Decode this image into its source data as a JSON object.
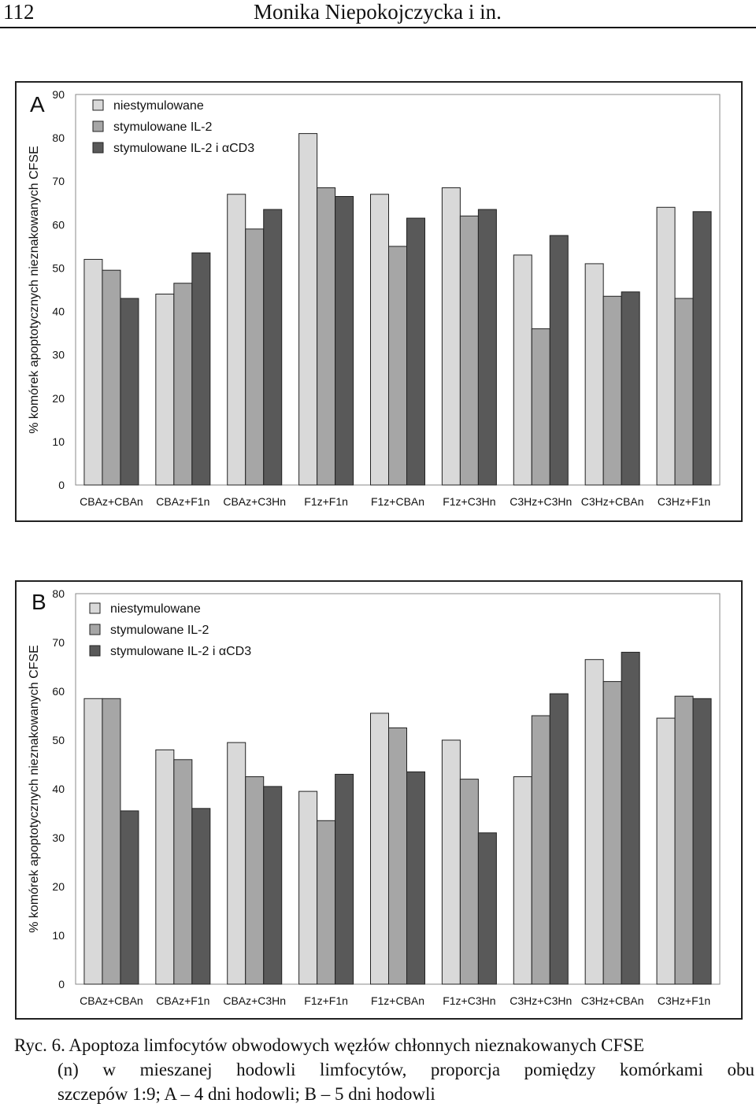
{
  "header": {
    "page_number": "112",
    "authors": "Monika Niepokojczycka i in."
  },
  "colors": {
    "niestymulowane": "#d9d9d9",
    "stymulowane_il2": "#a6a6a6",
    "stymulowane_il2_acd3": "#595959",
    "border": "#222222"
  },
  "chart_data": [
    {
      "type": "bar",
      "panel_letter": "A",
      "ylabel": "% komórek apoptotycznych nieznakowanych CFSE",
      "ylim": [
        0,
        90
      ],
      "yticks": [
        "0",
        "10",
        "20",
        "30",
        "40",
        "50",
        "60",
        "70",
        "80",
        "90"
      ],
      "legend_position": "top-left",
      "categories": [
        "CBAz+CBAn",
        "CBAz+F1n",
        "CBAz+C3Hn",
        "F1z+F1n",
        "F1z+CBAn",
        "F1z+C3Hn",
        "C3Hz+C3Hn",
        "C3Hz+CBAn",
        "C3Hz+F1n"
      ],
      "series": [
        {
          "name": "niestymulowane",
          "values": [
            52,
            44,
            67,
            81,
            67,
            68.5,
            53,
            51,
            64
          ]
        },
        {
          "name": "stymulowane IL-2",
          "values": [
            49.5,
            46.5,
            59,
            68.5,
            55,
            62,
            36,
            43.5,
            43
          ]
        },
        {
          "name": "stymulowane IL-2 i αCD3",
          "values": [
            43,
            53.5,
            63.5,
            66.5,
            61.5,
            63.5,
            57.5,
            44.5,
            63
          ]
        }
      ]
    },
    {
      "type": "bar",
      "panel_letter": "B",
      "ylabel": "% komórek apoptotycznych nieznakowanych CFSE",
      "ylim": [
        0,
        80
      ],
      "yticks": [
        "0",
        "10",
        "20",
        "30",
        "40",
        "50",
        "60",
        "70",
        "80"
      ],
      "legend_position": "top-left",
      "categories": [
        "CBAz+CBAn",
        "CBAz+F1n",
        "CBAz+C3Hn",
        "F1z+F1n",
        "F1z+CBAn",
        "F1z+C3Hn",
        "C3Hz+C3Hn",
        "C3Hz+CBAn",
        "C3Hz+F1n"
      ],
      "series": [
        {
          "name": "niestymulowane",
          "values": [
            58.5,
            48,
            49.5,
            39.5,
            55.5,
            50,
            42.5,
            66.5,
            54.5
          ]
        },
        {
          "name": "stymulowane IL-2",
          "values": [
            58.5,
            46,
            42.5,
            33.5,
            52.5,
            42,
            55,
            62,
            59
          ]
        },
        {
          "name": "stymulowane IL-2 i αCD3",
          "values": [
            35.5,
            36,
            40.5,
            43,
            43.5,
            31,
            59.5,
            68,
            58.5
          ]
        }
      ]
    }
  ],
  "caption": {
    "line1": "Ryc. 6. Apoptoza limfocytów obwodowych węzłów chłonnych nieznakowanych CFSE",
    "line2": "(n) w mieszanej hodowli limfocytów, proporcja pomiędzy komórkami obu",
    "line3": "szczepów 1:9; A – 4 dni hodowli; B – 5 dni hodowli"
  }
}
